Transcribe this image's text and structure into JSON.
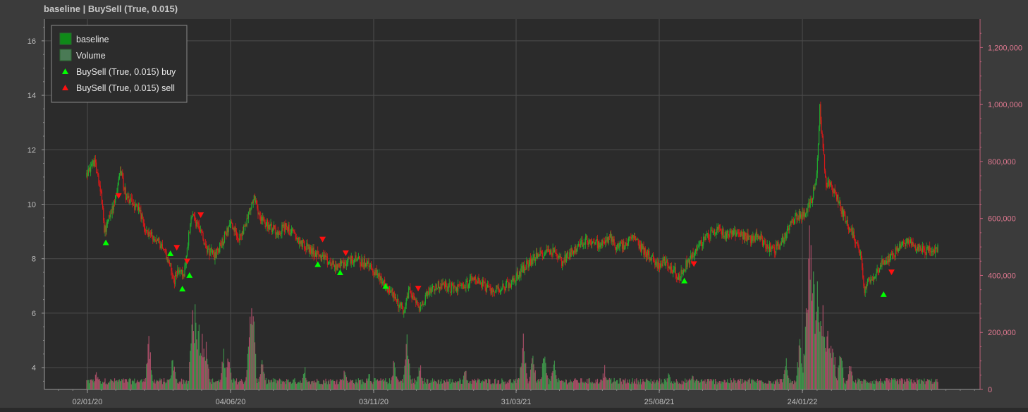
{
  "chart_data": {
    "type": "candlestick",
    "title": "baseline | BuySell (True, 0.015)",
    "x_tick_labels": [
      "02/01/20",
      "04/06/20",
      "03/11/20",
      "31/03/21",
      "25/08/21",
      "24/01/22"
    ],
    "y_left": {
      "ylim": [
        3.2,
        16.8
      ],
      "ticks": [
        4,
        6,
        8,
        10,
        12,
        14,
        16
      ]
    },
    "y_right": {
      "ylim": [
        0,
        1300000
      ],
      "ticks": [
        0,
        200000,
        400000,
        600000,
        800000,
        1000000,
        1200000
      ],
      "tick_labels": [
        "0",
        "200,000",
        "400,000",
        "600,000",
        "800,000",
        "1,000,000",
        "1,200,000"
      ]
    },
    "grid": true,
    "legend_position": "top-left",
    "legend": [
      {
        "label": "baseline",
        "marker": "square",
        "color": "#0f8a18"
      },
      {
        "label": "Volume",
        "marker": "square",
        "color": "#4a7a55"
      },
      {
        "label": "BuySell (True, 0.015) buy",
        "marker": "triangle-up",
        "color": "#00ff00"
      },
      {
        "label": "BuySell (True, 0.015) sell",
        "marker": "triangle-down",
        "color": "#ff1010"
      }
    ],
    "price_path_approx": [
      [
        0,
        11.0
      ],
      [
        10,
        11.6
      ],
      [
        18,
        10.4
      ],
      [
        22,
        9.0
      ],
      [
        30,
        9.6
      ],
      [
        37,
        10.4
      ],
      [
        42,
        11.3
      ],
      [
        50,
        10.2
      ],
      [
        58,
        10.0
      ],
      [
        66,
        9.7
      ],
      [
        75,
        9.0
      ],
      [
        85,
        8.7
      ],
      [
        94,
        8.5
      ],
      [
        102,
        8.0
      ],
      [
        110,
        7.2
      ],
      [
        116,
        7.6
      ],
      [
        122,
        7.4
      ],
      [
        126,
        8.4
      ],
      [
        132,
        9.6
      ],
      [
        140,
        9.2
      ],
      [
        150,
        8.4
      ],
      [
        160,
        8.1
      ],
      [
        170,
        8.6
      ],
      [
        180,
        9.3
      ],
      [
        190,
        8.8
      ],
      [
        198,
        9.1
      ],
      [
        204,
        9.8
      ],
      [
        210,
        10.3
      ],
      [
        218,
        9.5
      ],
      [
        228,
        9.2
      ],
      [
        240,
        9.0
      ],
      [
        250,
        9.2
      ],
      [
        262,
        8.8
      ],
      [
        272,
        8.5
      ],
      [
        282,
        8.3
      ],
      [
        292,
        8.1
      ],
      [
        302,
        7.9
      ],
      [
        312,
        7.7
      ],
      [
        322,
        7.8
      ],
      [
        332,
        8.0
      ],
      [
        342,
        7.9
      ],
      [
        352,
        7.8
      ],
      [
        362,
        7.5
      ],
      [
        372,
        7.1
      ],
      [
        382,
        6.8
      ],
      [
        390,
        6.4
      ],
      [
        398,
        6.1
      ],
      [
        405,
        6.9
      ],
      [
        412,
        6.4
      ],
      [
        420,
        6.2
      ],
      [
        428,
        6.8
      ],
      [
        438,
        7.0
      ],
      [
        450,
        7.0
      ],
      [
        462,
        6.9
      ],
      [
        474,
        7.0
      ],
      [
        486,
        7.3
      ],
      [
        496,
        7.1
      ],
      [
        506,
        6.8
      ],
      [
        516,
        6.9
      ],
      [
        526,
        7.0
      ],
      [
        536,
        7.2
      ],
      [
        546,
        7.6
      ],
      [
        556,
        7.9
      ],
      [
        566,
        8.1
      ],
      [
        576,
        8.3
      ],
      [
        586,
        8.3
      ],
      [
        596,
        7.9
      ],
      [
        606,
        8.2
      ],
      [
        616,
        8.4
      ],
      [
        626,
        8.7
      ],
      [
        636,
        8.6
      ],
      [
        646,
        8.5
      ],
      [
        656,
        8.8
      ],
      [
        666,
        8.4
      ],
      [
        676,
        8.5
      ],
      [
        686,
        8.8
      ],
      [
        696,
        8.4
      ],
      [
        706,
        8.1
      ],
      [
        716,
        7.8
      ],
      [
        726,
        7.9
      ],
      [
        736,
        7.6
      ],
      [
        744,
        7.3
      ],
      [
        752,
        7.8
      ],
      [
        762,
        8.2
      ],
      [
        772,
        8.6
      ],
      [
        782,
        8.9
      ],
      [
        792,
        9.1
      ],
      [
        802,
        8.9
      ],
      [
        812,
        9.0
      ],
      [
        822,
        8.9
      ],
      [
        832,
        8.7
      ],
      [
        842,
        8.9
      ],
      [
        852,
        8.5
      ],
      [
        862,
        8.3
      ],
      [
        872,
        8.6
      ],
      [
        882,
        9.2
      ],
      [
        892,
        9.6
      ],
      [
        902,
        9.6
      ],
      [
        910,
        10.2
      ],
      [
        916,
        11.2
      ],
      [
        920,
        13.5
      ],
      [
        924,
        12.0
      ],
      [
        928,
        10.8
      ],
      [
        934,
        10.6
      ],
      [
        942,
        10.2
      ],
      [
        950,
        9.6
      ],
      [
        958,
        9.1
      ],
      [
        966,
        8.6
      ],
      [
        972,
        8.0
      ],
      [
        976,
        6.9
      ],
      [
        982,
        7.2
      ],
      [
        990,
        7.5
      ],
      [
        1000,
        7.9
      ],
      [
        1010,
        8.1
      ],
      [
        1020,
        8.4
      ],
      [
        1030,
        8.6
      ],
      [
        1040,
        8.5
      ],
      [
        1050,
        8.3
      ],
      [
        1060,
        8.3
      ],
      [
        1068,
        8.4
      ]
    ],
    "volume_spikes_approx": [
      [
        12,
        60000
      ],
      [
        78,
        180000
      ],
      [
        108,
        120000
      ],
      [
        133,
        290000
      ],
      [
        136,
        300000
      ],
      [
        140,
        250000
      ],
      [
        145,
        210000
      ],
      [
        150,
        180000
      ],
      [
        172,
        135000
      ],
      [
        178,
        120000
      ],
      [
        205,
        250000
      ],
      [
        208,
        340000
      ],
      [
        220,
        110000
      ],
      [
        274,
        80000
      ],
      [
        324,
        75000
      ],
      [
        354,
        70000
      ],
      [
        386,
        110000
      ],
      [
        402,
        180000
      ],
      [
        418,
        100000
      ],
      [
        475,
        80000
      ],
      [
        548,
        210000
      ],
      [
        560,
        130000
      ],
      [
        574,
        140000
      ],
      [
        586,
        120000
      ],
      [
        650,
        80000
      ],
      [
        730,
        60000
      ],
      [
        760,
        55000
      ],
      [
        878,
        100000
      ],
      [
        895,
        180000
      ],
      [
        904,
        380000
      ],
      [
        908,
        640000
      ],
      [
        912,
        460000
      ],
      [
        918,
        450000
      ],
      [
        924,
        320000
      ],
      [
        930,
        260000
      ],
      [
        936,
        210000
      ],
      [
        946,
        140000
      ],
      [
        958,
        90000
      ]
    ],
    "buy_signals_approx": [
      [
        24,
        8.6
      ],
      [
        105,
        8.2
      ],
      [
        120,
        6.9
      ],
      [
        129,
        7.4
      ],
      [
        290,
        7.8
      ],
      [
        318,
        7.5
      ],
      [
        375,
        7.0
      ],
      [
        750,
        7.2
      ],
      [
        1000,
        6.7
      ]
    ],
    "sell_signals_approx": [
      [
        40,
        10.3
      ],
      [
        113,
        8.4
      ],
      [
        126,
        7.9
      ],
      [
        143,
        9.6
      ],
      [
        296,
        8.7
      ],
      [
        325,
        8.2
      ],
      [
        416,
        6.9
      ],
      [
        762,
        7.8
      ],
      [
        1010,
        7.5
      ]
    ]
  }
}
